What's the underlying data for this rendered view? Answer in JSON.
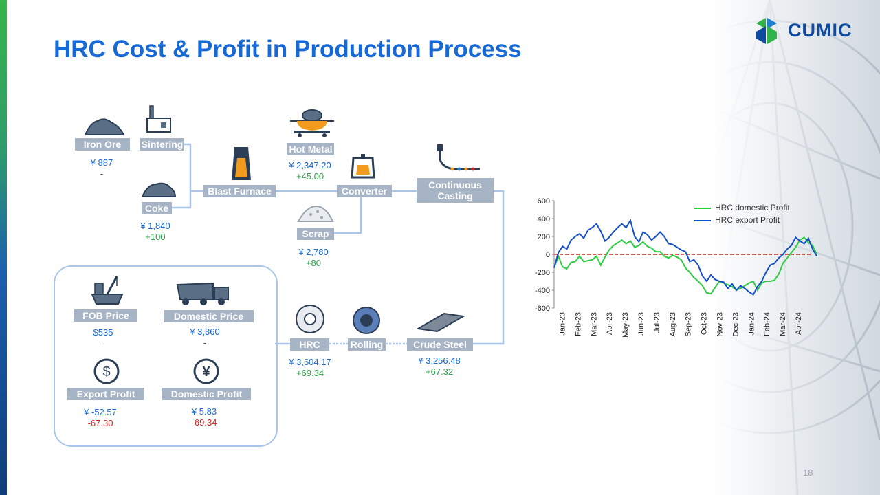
{
  "title": "HRC Cost & Profit in Production Process",
  "logo": {
    "text": "CUMIC"
  },
  "page_number": "18",
  "colors": {
    "accent": "#1769d7",
    "label_bg": "#a7b4c6",
    "connector": "#a9c6ea",
    "up": "#2ca14a",
    "down": "#d32424"
  },
  "nodes": {
    "iron_ore": {
      "label": "Iron Ore",
      "price": "¥ 887",
      "change": "-"
    },
    "sintering": {
      "label": "Sintering"
    },
    "coke": {
      "label": "Coke",
      "price": "¥ 1,840",
      "change": "+100"
    },
    "blast_furnace": {
      "label": "Blast Furnace"
    },
    "hot_metal": {
      "label": "Hot Metal",
      "price": "¥ 2,347.20",
      "change": "+45.00"
    },
    "converter": {
      "label": "Converter"
    },
    "scrap": {
      "label": "Scrap",
      "price": "¥ 2,780",
      "change": "+80"
    },
    "continuous_casting": {
      "label_line1": "Continuous",
      "label_line2": "Casting"
    },
    "crude_steel": {
      "label": "Crude Steel",
      "price": "¥ 3,256.48",
      "change": "+67.32"
    },
    "rolling": {
      "label": "Rolling"
    },
    "hrc": {
      "label": "HRC",
      "price": "¥ 3,604.17",
      "change": "+69.34"
    }
  },
  "summary": {
    "fob_price": {
      "label": "FOB Price",
      "value": "$535",
      "change": "-"
    },
    "domestic_price": {
      "label": "Domestic Price",
      "value": "¥ 3,860",
      "change": "-"
    },
    "export_profit": {
      "label": "Export Profit",
      "value": "¥ -52.57",
      "change": "-67.30"
    },
    "domestic_profit": {
      "label": "Domestic Profit",
      "value": "¥ 5.83",
      "change": "-69.34"
    }
  },
  "icons": [
    "ore-pile-icon",
    "factory-icon",
    "blast-furnace-icon",
    "ladle-icon",
    "converter-icon",
    "coke-pile-icon",
    "scrap-pile-icon",
    "casting-icon",
    "ship-crane-icon",
    "truck-icon",
    "dollar-icon",
    "yen-icon",
    "coil-icon",
    "roll-icon",
    "steel-slab-icon"
  ],
  "chart_data": {
    "type": "line",
    "yticks": [
      "600",
      "400",
      "200",
      "0",
      "-200",
      "-400",
      "-600"
    ],
    "ylim": [
      -600,
      600
    ],
    "xticks": [
      "Jan-23",
      "Feb-23",
      "Mar-23",
      "Apr-23",
      "May-23",
      "Jun-23",
      "Jul-23",
      "Aug-23",
      "Sep-23",
      "Oct-23",
      "Nov-23",
      "Dec-23",
      "Jan-24",
      "Feb-24",
      "Mar-24",
      "Apr-24"
    ],
    "series": [
      {
        "name": "HRC domestic Profit",
        "color": "#2ecc40",
        "values": [
          -150,
          -20,
          -140,
          -160,
          -90,
          -80,
          -20,
          -80,
          -70,
          -60,
          -20,
          -120,
          -30,
          50,
          100,
          130,
          160,
          120,
          150,
          80,
          100,
          140,
          90,
          70,
          30,
          30,
          -20,
          -40,
          -10,
          -30,
          -60,
          -150,
          -200,
          -260,
          -300,
          -350,
          -430,
          -440,
          -370,
          -300,
          -320,
          -340,
          -360,
          -400,
          -380,
          -350,
          -320,
          -300,
          -400,
          -320,
          -300,
          -300,
          -290,
          -220,
          -100,
          -40,
          20,
          80,
          160,
          190,
          130,
          100,
          0
        ]
      },
      {
        "name": "HRC export Profit",
        "color": "#1550c8",
        "values": [
          -150,
          20,
          90,
          60,
          160,
          200,
          230,
          180,
          270,
          300,
          340,
          260,
          150,
          190,
          250,
          300,
          340,
          300,
          380,
          200,
          140,
          250,
          220,
          160,
          200,
          250,
          200,
          120,
          110,
          80,
          50,
          30,
          -80,
          -60,
          -120,
          -240,
          -300,
          -230,
          -280,
          -300,
          -310,
          -380,
          -330,
          -400,
          -350,
          -380,
          -420,
          -450,
          -360,
          -300,
          -200,
          -120,
          -100,
          -40,
          0,
          60,
          100,
          190,
          150,
          120,
          180,
          60,
          -20
        ]
      }
    ],
    "reference_line": {
      "value": 0,
      "color": "#d32424",
      "style": "dashed"
    },
    "legend_position": "top-right"
  }
}
